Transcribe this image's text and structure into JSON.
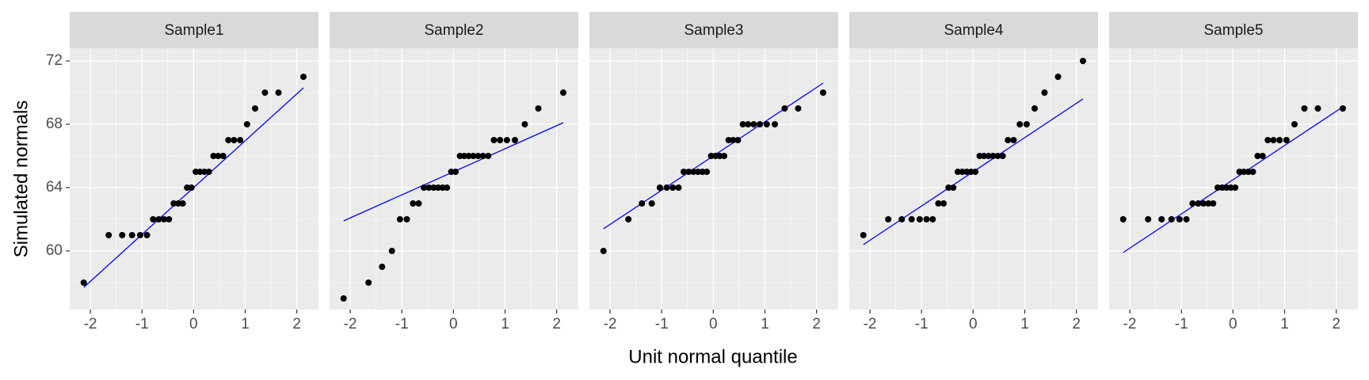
{
  "chart_data": {
    "type": "qq",
    "x_label": "Unit normal quantile",
    "y_label": "Simulated normals",
    "x": [
      -2.128,
      -1.645,
      -1.383,
      -1.192,
      -1.036,
      -0.903,
      -0.784,
      -0.674,
      -0.573,
      -0.477,
      -0.385,
      -0.297,
      -0.21,
      -0.126,
      -0.042,
      0.042,
      0.126,
      0.21,
      0.297,
      0.385,
      0.477,
      0.573,
      0.674,
      0.784,
      0.903,
      1.036,
      1.192,
      1.383,
      1.645,
      2.128
    ],
    "series": [
      {
        "name": "Sample1",
        "values": [
          58,
          61,
          61,
          61,
          61,
          61,
          62,
          62,
          62,
          62,
          63,
          63,
          63,
          64,
          64,
          65,
          65,
          65,
          65,
          66,
          66,
          66,
          67,
          67,
          67,
          68,
          69,
          70,
          70,
          71
        ],
        "line_values": [
          57.7,
          70.3
        ]
      },
      {
        "name": "Sample2",
        "values": [
          57,
          58,
          59,
          60,
          62,
          62,
          63,
          63,
          64,
          64,
          64,
          64,
          64,
          64,
          65,
          65,
          66,
          66,
          66,
          66,
          66,
          66,
          66,
          67,
          67,
          67,
          67,
          68,
          69,
          70
        ],
        "line_values": [
          61.9,
          68.1
        ]
      },
      {
        "name": "Sample3",
        "values": [
          60,
          62,
          63,
          63,
          64,
          64,
          64,
          64,
          65,
          65,
          65,
          65,
          65,
          65,
          66,
          66,
          66,
          66,
          67,
          67,
          67,
          68,
          68,
          68,
          68,
          68,
          68,
          69,
          69,
          70
        ],
        "line_values": [
          61.4,
          70.6
        ]
      },
      {
        "name": "Sample4",
        "values": [
          61,
          62,
          62,
          62,
          62,
          62,
          62,
          63,
          63,
          64,
          64,
          65,
          65,
          65,
          65,
          65,
          66,
          66,
          66,
          66,
          66,
          66,
          67,
          67,
          68,
          68,
          69,
          70,
          71,
          72
        ],
        "line_values": [
          60.4,
          69.6
        ]
      },
      {
        "name": "Sample5",
        "values": [
          62,
          62,
          62,
          62,
          62,
          62,
          63,
          63,
          63,
          63,
          63,
          64,
          64,
          64,
          64,
          64,
          65,
          65,
          65,
          65,
          66,
          66,
          67,
          67,
          67,
          67,
          68,
          69,
          69,
          69
        ],
        "line_values": [
          59.9,
          69.1
        ]
      }
    ],
    "point_color": "#000000",
    "line_color": "#0000ff",
    "xlim": [
      -2.4,
      2.42
    ],
    "ylim": [
      56.3,
      72.8
    ],
    "xticks": [
      -2,
      -1,
      0,
      1,
      2
    ],
    "yticks": [
      60,
      64,
      68,
      72
    ],
    "grid": true
  }
}
